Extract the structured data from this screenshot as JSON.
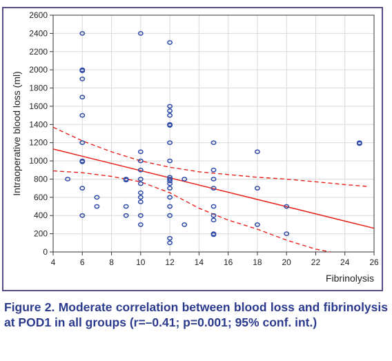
{
  "figure": {
    "caption": "Figure 2. Moderate correlation between blood loss and fibrinolysis at POD1 in all groups (r=–0.41; p=0.001; 95% conf. int.)",
    "frame_color": "#5b4a8a",
    "caption_color": "#2b3a8c"
  },
  "chart_data": {
    "type": "scatter",
    "xlabel": "Fibrinolysis",
    "ylabel": "Intraoperative blood loss (ml)",
    "xlim": [
      4,
      26
    ],
    "ylim": [
      0,
      2600
    ],
    "xticks": [
      4,
      6,
      8,
      10,
      12,
      14,
      16,
      18,
      20,
      22,
      24,
      26
    ],
    "yticks": [
      0,
      200,
      400,
      600,
      800,
      1000,
      1200,
      1400,
      1600,
      1800,
      2000,
      2200,
      2400,
      2600
    ],
    "grid": true,
    "marker_color": "#2e4aa8",
    "fit_color": "#e8221b",
    "points": [
      [
        5,
        800
      ],
      [
        6,
        2400
      ],
      [
        6,
        2000
      ],
      [
        6,
        1990
      ],
      [
        6,
        1900
      ],
      [
        6,
        1700
      ],
      [
        6,
        1500
      ],
      [
        6,
        1200
      ],
      [
        6,
        1000
      ],
      [
        6,
        990
      ],
      [
        6,
        700
      ],
      [
        6,
        400
      ],
      [
        7,
        600
      ],
      [
        7,
        500
      ],
      [
        9,
        800
      ],
      [
        9,
        790
      ],
      [
        9,
        500
      ],
      [
        9,
        400
      ],
      [
        10,
        2400
      ],
      [
        10,
        1100
      ],
      [
        10,
        1000
      ],
      [
        10,
        900
      ],
      [
        10,
        800
      ],
      [
        10,
        750
      ],
      [
        10,
        650
      ],
      [
        10,
        600
      ],
      [
        10,
        550
      ],
      [
        10,
        400
      ],
      [
        10,
        300
      ],
      [
        12,
        2300
      ],
      [
        12,
        1600
      ],
      [
        12,
        1550
      ],
      [
        12,
        1500
      ],
      [
        12,
        1400
      ],
      [
        12,
        1390
      ],
      [
        12,
        1200
      ],
      [
        12,
        1000
      ],
      [
        12,
        820
      ],
      [
        12,
        800
      ],
      [
        12,
        780
      ],
      [
        12,
        750
      ],
      [
        12,
        700
      ],
      [
        12,
        600
      ],
      [
        12,
        500
      ],
      [
        12,
        400
      ],
      [
        12,
        150
      ],
      [
        12,
        100
      ],
      [
        13,
        800
      ],
      [
        13,
        300
      ],
      [
        15,
        1200
      ],
      [
        15,
        900
      ],
      [
        15,
        800
      ],
      [
        15,
        700
      ],
      [
        15,
        500
      ],
      [
        15,
        400
      ],
      [
        15,
        350
      ],
      [
        15,
        200
      ],
      [
        15,
        190
      ],
      [
        18,
        1100
      ],
      [
        18,
        700
      ],
      [
        18,
        300
      ],
      [
        20,
        500
      ],
      [
        20,
        200
      ],
      [
        25,
        1200
      ],
      [
        25,
        1190
      ]
    ],
    "fit_line": {
      "x": [
        4,
        26
      ],
      "y": [
        1130,
        260
      ]
    },
    "confidence_upper": {
      "x": [
        4,
        6,
        8,
        10,
        12,
        14,
        16,
        18,
        20,
        22,
        24,
        25.5
      ],
      "y": [
        1370,
        1220,
        1100,
        1000,
        930,
        880,
        850,
        820,
        800,
        770,
        740,
        720
      ]
    },
    "confidence_lower": {
      "x": [
        4,
        6,
        8,
        10,
        12,
        14,
        16,
        18,
        20,
        22,
        23
      ],
      "y": [
        890,
        870,
        830,
        770,
        650,
        480,
        350,
        250,
        130,
        30,
        0
      ]
    }
  }
}
